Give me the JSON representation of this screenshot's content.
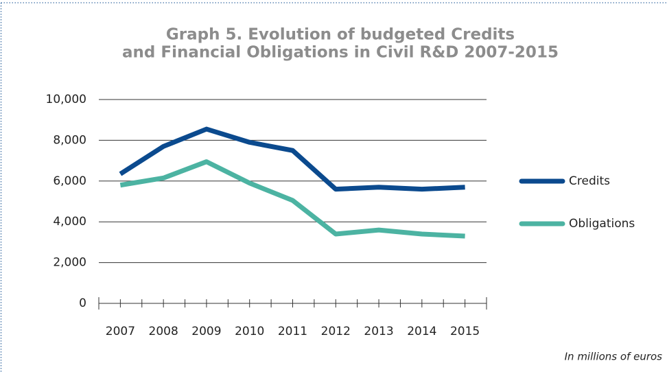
{
  "chart_data": {
    "type": "line",
    "title": [
      "Graph 5. Evolution of budgeted Credits",
      "and Financial Obligations in Civil R&D 2007-2015"
    ],
    "categories": [
      "2007",
      "2008",
      "2009",
      "2010",
      "2011",
      "2012",
      "2013",
      "2014",
      "2015"
    ],
    "series": [
      {
        "name": "Credits",
        "color": "#0b4a8e",
        "values": [
          6350,
          7700,
          8550,
          7900,
          7500,
          5600,
          5700,
          5600,
          5700
        ]
      },
      {
        "name": "Obligations",
        "color": "#4cb3a2",
        "values": [
          5800,
          6150,
          6950,
          5900,
          5050,
          3400,
          3600,
          3400,
          3300
        ]
      }
    ],
    "ylim": [
      0,
      10000
    ],
    "yticks": [
      0,
      {
        "value": 2000,
        "label": "2,000"
      },
      {
        "value": 4000,
        "label": "4,000"
      },
      {
        "value": 6000,
        "label": "6,000"
      },
      {
        "value": 8000,
        "label": "8,000"
      },
      {
        "value": 10000,
        "label": "10,000"
      }
    ],
    "grid": true,
    "legend": "right",
    "note": "In millions of euros"
  }
}
